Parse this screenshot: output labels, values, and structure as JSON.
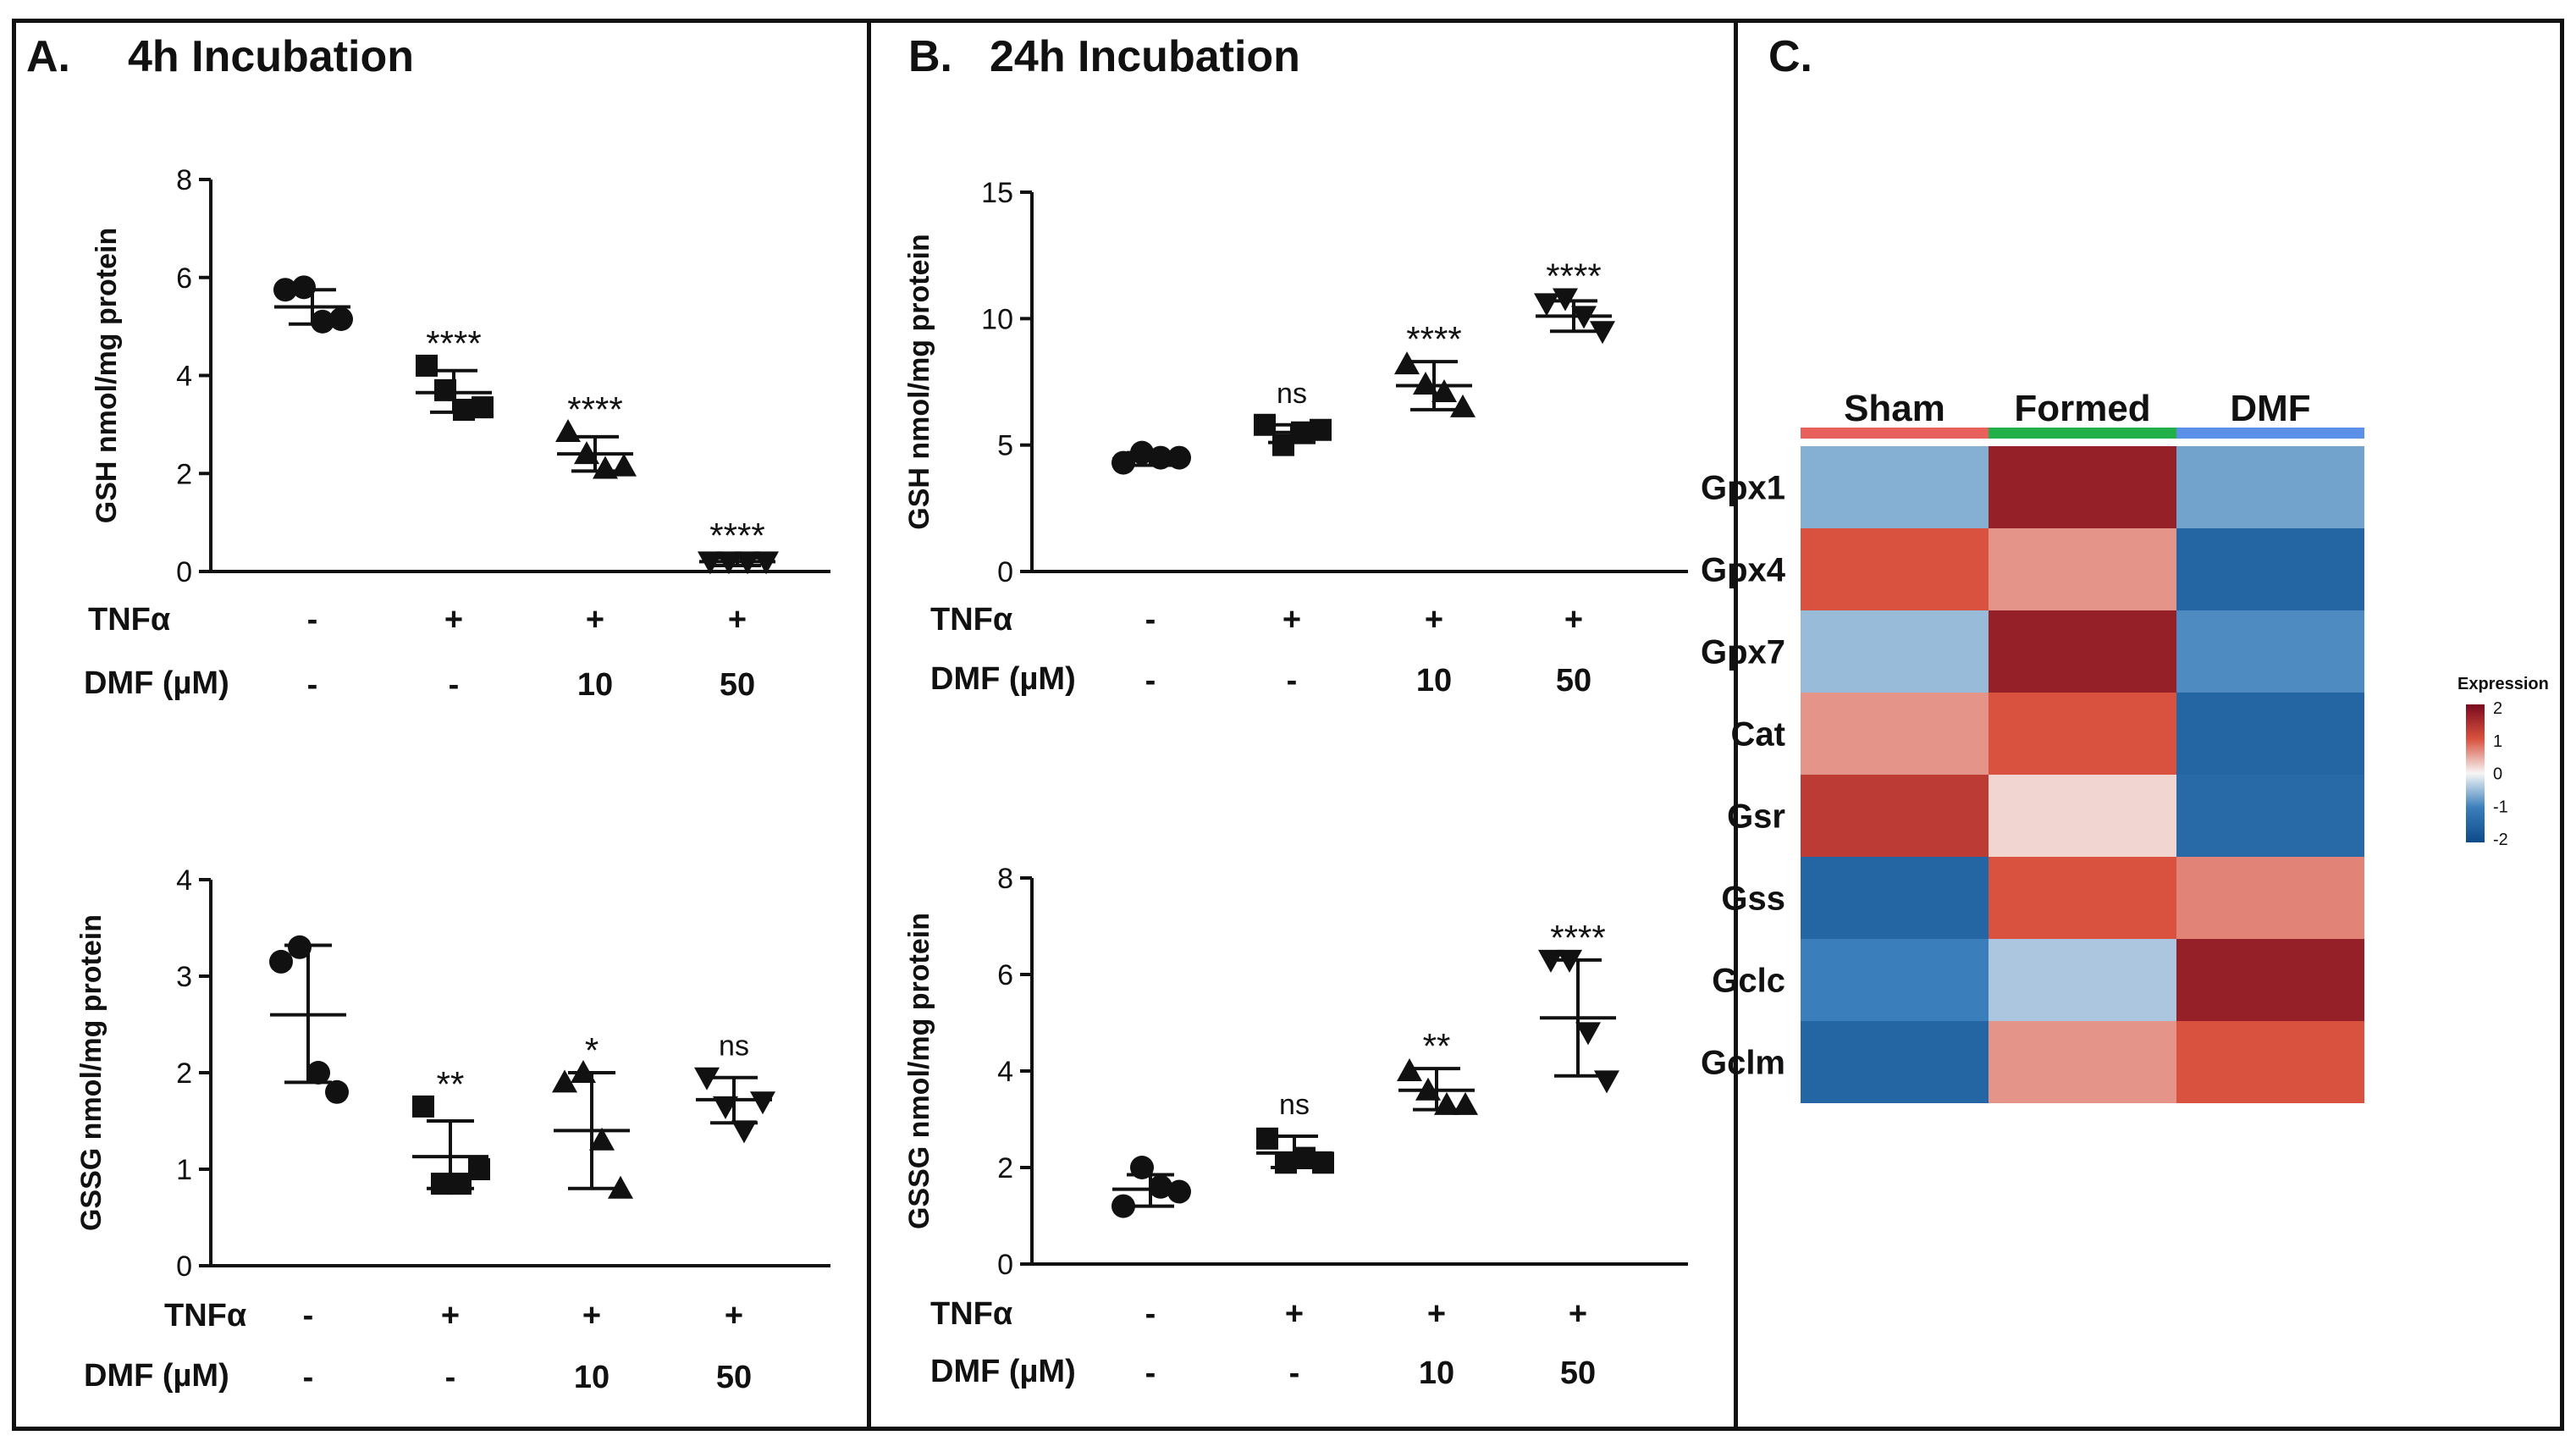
{
  "colors": {
    "ink": "#111111",
    "sham": "#e8605c",
    "formed": "#22b04a",
    "dmf": "#5b8fe8",
    "scale": [
      "#0d4a8a",
      "#3a7fbb",
      "#f6f6f6",
      "#d8523f",
      "#7a0a1e"
    ]
  },
  "panels": {
    "a": {
      "label": "A.",
      "title": "4h Incubation"
    },
    "b": {
      "label": "B.",
      "title": "24h Incubation"
    },
    "c": {
      "label": "C."
    }
  },
  "chart_data": [
    {
      "id": "a_gsh",
      "panel": "A",
      "type": "scatter",
      "ylabel": "GSH nmol/mg protein",
      "ylim": [
        0,
        8
      ],
      "yticks": [
        0,
        2,
        4,
        6,
        8
      ],
      "conditions": {
        "tnfa_label": "TNFα",
        "dmf_label": "DMF (µM)",
        "tnfa": [
          "-",
          "+",
          "+",
          "+"
        ],
        "dmf": [
          "-",
          "-",
          "10",
          "50"
        ]
      },
      "groups": [
        {
          "marker": "circle",
          "points": [
            5.75,
            5.8,
            5.1,
            5.15
          ],
          "mean": 5.4,
          "sd_low": 5.05,
          "sd_high": 5.75,
          "sig": ""
        },
        {
          "marker": "square",
          "points": [
            4.2,
            3.7,
            3.3,
            3.35
          ],
          "mean": 3.65,
          "sd_low": 3.25,
          "sd_high": 4.1,
          "sig": "****"
        },
        {
          "marker": "triangle",
          "points": [
            2.85,
            2.4,
            2.1,
            2.15
          ],
          "mean": 2.4,
          "sd_low": 2.05,
          "sd_high": 2.75,
          "sig": "****"
        },
        {
          "marker": "tri_down",
          "points": [
            0.2,
            0.2,
            0.2,
            0.2
          ],
          "mean": 0.2,
          "sd_low": 0.12,
          "sd_high": 0.28,
          "sig": "****"
        }
      ]
    },
    {
      "id": "a_gssg",
      "panel": "A",
      "type": "scatter",
      "ylabel": "GSSG nmol/mg protein",
      "ylim": [
        0,
        4
      ],
      "yticks": [
        0,
        1,
        2,
        3,
        4
      ],
      "conditions": {
        "tnfa_label": "TNFα",
        "dmf_label": "DMF (µM)",
        "tnfa": [
          "-",
          "+",
          "+",
          "+"
        ],
        "dmf": [
          "-",
          "-",
          "10",
          "50"
        ]
      },
      "groups": [
        {
          "marker": "circle",
          "points": [
            3.15,
            3.3,
            2.0,
            1.8
          ],
          "mean": 2.6,
          "sd_low": 1.9,
          "sd_high": 3.32,
          "sig": ""
        },
        {
          "marker": "square",
          "points": [
            1.65,
            0.85,
            0.85,
            1.0
          ],
          "mean": 1.13,
          "sd_low": 0.8,
          "sd_high": 1.5,
          "sig": "**"
        },
        {
          "marker": "triangle",
          "points": [
            1.9,
            2.0,
            1.3,
            0.8
          ],
          "mean": 1.4,
          "sd_low": 0.8,
          "sd_high": 2.0,
          "sig": "*"
        },
        {
          "marker": "tri_down",
          "points": [
            1.95,
            1.65,
            1.4,
            1.7
          ],
          "mean": 1.72,
          "sd_low": 1.48,
          "sd_high": 1.95,
          "sig": "ns"
        }
      ]
    },
    {
      "id": "b_gsh",
      "panel": "B",
      "type": "scatter",
      "ylabel": "GSH nmol/mg protein",
      "ylim": [
        0,
        15
      ],
      "yticks": [
        0,
        5,
        10,
        15
      ],
      "conditions": {
        "tnfa_label": "TNFα",
        "dmf_label": "DMF (µM)",
        "tnfa": [
          "-",
          "+",
          "+",
          "+"
        ],
        "dmf": [
          "-",
          "-",
          "10",
          "50"
        ]
      },
      "groups": [
        {
          "marker": "circle",
          "points": [
            4.3,
            4.7,
            4.5,
            4.5
          ],
          "mean": 4.45,
          "sd_low": 4.2,
          "sd_high": 4.7,
          "sig": ""
        },
        {
          "marker": "square",
          "points": [
            5.8,
            5.0,
            5.5,
            5.6
          ],
          "mean": 5.5,
          "sd_low": 5.1,
          "sd_high": 5.8,
          "sig": "ns"
        },
        {
          "marker": "triangle",
          "points": [
            8.2,
            7.4,
            7.1,
            6.5
          ],
          "mean": 7.35,
          "sd_low": 6.4,
          "sd_high": 8.3,
          "sig": "****"
        },
        {
          "marker": "tri_down",
          "points": [
            10.6,
            10.8,
            10.1,
            9.5
          ],
          "mean": 10.1,
          "sd_low": 9.5,
          "sd_high": 10.7,
          "sig": "****"
        }
      ]
    },
    {
      "id": "b_gssg",
      "panel": "B",
      "type": "scatter",
      "ylabel": "GSSG nmol/mg protein",
      "ylim": [
        0,
        8
      ],
      "yticks": [
        0,
        2,
        4,
        6,
        8
      ],
      "conditions": {
        "tnfa_label": "TNFα",
        "dmf_label": "DMF (µM)",
        "tnfa": [
          "-",
          "+",
          "+",
          "+"
        ],
        "dmf": [
          "-",
          "-",
          "10",
          "50"
        ]
      },
      "groups": [
        {
          "marker": "circle",
          "points": [
            1.2,
            2.0,
            1.6,
            1.5
          ],
          "mean": 1.55,
          "sd_low": 1.2,
          "sd_high": 1.85,
          "sig": ""
        },
        {
          "marker": "square",
          "points": [
            2.6,
            2.1,
            2.2,
            2.1
          ],
          "mean": 2.3,
          "sd_low": 2.0,
          "sd_high": 2.65,
          "sig": "ns"
        },
        {
          "marker": "triangle",
          "points": [
            4.0,
            3.6,
            3.3,
            3.3
          ],
          "mean": 3.6,
          "sd_low": 3.2,
          "sd_high": 4.05,
          "sig": "**"
        },
        {
          "marker": "tri_down",
          "points": [
            6.3,
            6.3,
            4.8,
            3.8
          ],
          "mean": 5.1,
          "sd_low": 3.9,
          "sd_high": 6.3,
          "sig": "****"
        }
      ]
    },
    {
      "id": "c_heatmap",
      "panel": "C",
      "type": "heatmap",
      "columns": [
        "Sham",
        "Formed",
        "DMF"
      ],
      "rows": [
        "Gpx1",
        "Gpx4",
        "Gpx7",
        "Cat",
        "Gsr",
        "Gss",
        "Gclc",
        "Gclm"
      ],
      "values": [
        [
          -0.6,
          1.7,
          -0.7
        ],
        [
          1.0,
          0.6,
          -1.5
        ],
        [
          -0.5,
          1.7,
          -0.9
        ],
        [
          0.6,
          1.0,
          -1.5
        ],
        [
          1.3,
          0.2,
          -1.4
        ],
        [
          -1.5,
          1.0,
          0.7
        ],
        [
          -1.0,
          -0.4,
          1.7
        ],
        [
          -1.5,
          0.6,
          1.0
        ]
      ],
      "legend": {
        "title": "Expression",
        "ticks": [
          "2",
          "1",
          "0",
          "-1",
          "-2"
        ],
        "range": [
          -2,
          2
        ]
      }
    }
  ]
}
